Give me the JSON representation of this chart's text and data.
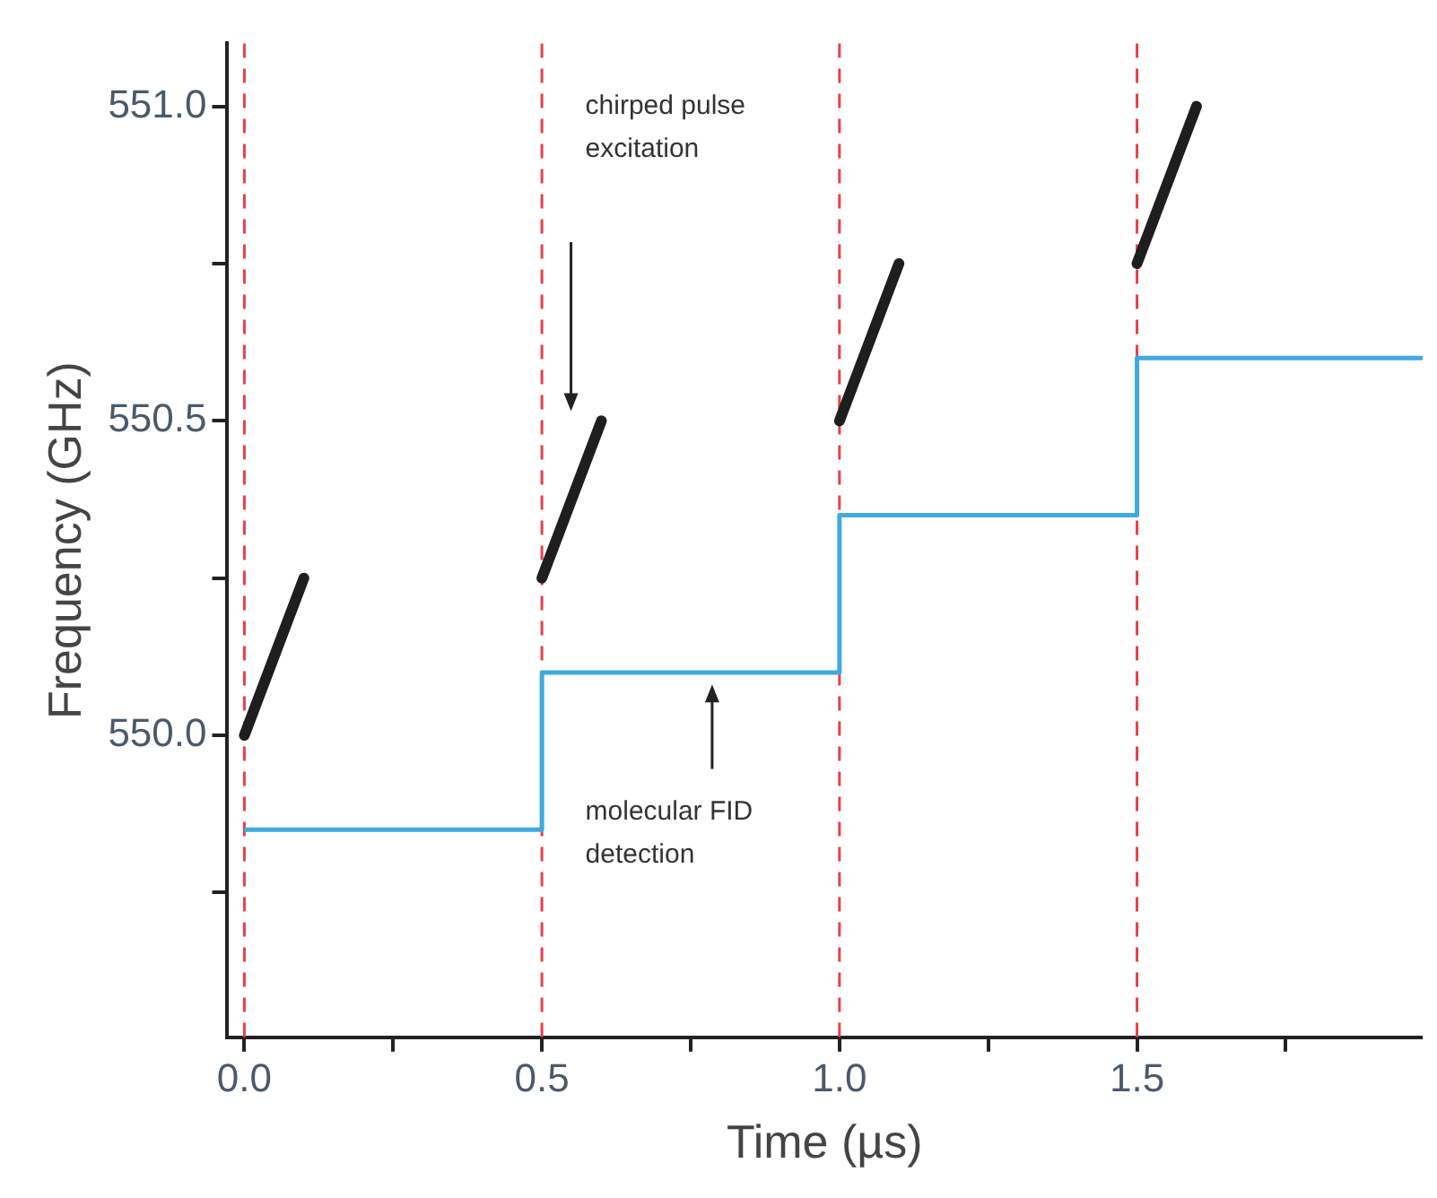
{
  "chart_data": {
    "type": "line",
    "xlabel": "Time (µs)",
    "ylabel": "Frequency (GHz)",
    "xlim": [
      -0.03,
      1.98
    ],
    "ylim": [
      549.52,
      551.1
    ],
    "xticks": [
      {
        "value": 0,
        "label": "0.0"
      },
      {
        "value": 0.25,
        "label": null
      },
      0.5,
      {
        "value": 0.75,
        "label": null
      },
      {
        "value": 1,
        "label": "1.0"
      },
      {
        "value": 1.25,
        "label": null
      },
      1.5,
      {
        "value": 1.75,
        "label": null
      }
    ],
    "yticks": [
      {
        "value": 549.75,
        "label": null
      },
      {
        "value": 550,
        "label": "550.0"
      },
      {
        "value": 550.25,
        "label": null
      },
      550.5,
      {
        "value": 550.75,
        "label": null
      },
      {
        "value": 551,
        "label": "551.0"
      }
    ],
    "marker": "none",
    "series": [
      {
        "color": "#1e1e1e",
        "x": [
          0,
          0.1
        ],
        "values": [
          550,
          550.25
        ]
      },
      {
        "color": "#1e1e1e",
        "x": [
          0.5,
          0.6
        ],
        "values": [
          550.25,
          550.5
        ]
      },
      {
        "color": "#1e1e1e",
        "x": [
          1,
          1.1
        ],
        "values": [
          550.5,
          550.75
        ]
      },
      {
        "color": "#1e1e1e",
        "x": [
          1.5,
          1.6
        ],
        "values": [
          550.75,
          551
        ]
      },
      {
        "type": "step",
        "color": "#3fa9e0",
        "x": [
          0,
          0.5,
          1,
          1.5,
          1.98
        ],
        "values": [
          549.85,
          550.1,
          550.35,
          550.6,
          550.6
        ]
      }
    ],
    "ref_lines": [
      {
        "axis": "x",
        "value": 0,
        "color": "#e8404a",
        "line_style": "dashed"
      },
      {
        "axis": "x",
        "value": 0.5,
        "color": "#e8404a",
        "line_style": "dashed"
      },
      {
        "axis": "x",
        "value": 1,
        "color": "#e8404a",
        "line_style": "dashed"
      },
      {
        "axis": "x",
        "value": 1.5,
        "color": "#e8404a",
        "line_style": "dashed"
      }
    ],
    "annotations": [
      "chirped pulse excitation",
      "molecular FID detection"
    ]
  }
}
